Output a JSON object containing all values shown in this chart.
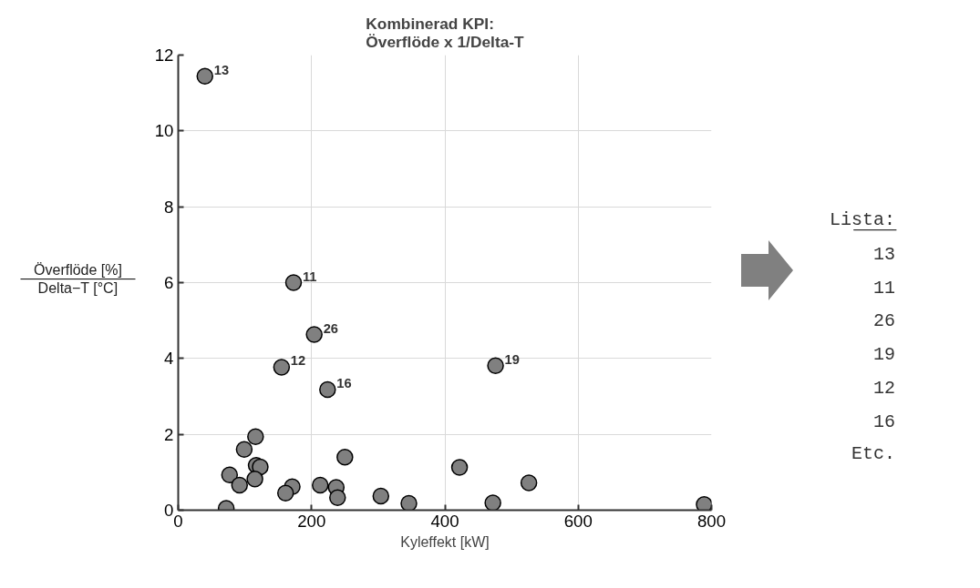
{
  "chart_data": {
    "type": "scatter",
    "title": "Kombinerad KPI:\nÖverflöde x 1/Delta-T",
    "xlabel": "Kyleffekt [kW]",
    "ylabel": "Överflöde [%]\nDelta−T [°C]",
    "x": [
      40,
      173,
      204,
      155,
      224,
      476,
      116,
      99,
      117,
      123,
      77,
      92,
      115,
      72,
      171,
      161,
      213,
      237,
      239,
      250,
      304,
      346,
      422,
      472,
      526,
      789
    ],
    "values": [
      11.44,
      6.0,
      4.63,
      3.77,
      3.18,
      3.81,
      1.94,
      1.6,
      1.18,
      1.14,
      0.93,
      0.66,
      0.82,
      0.05,
      0.62,
      0.45,
      0.66,
      0.6,
      0.33,
      1.4,
      0.37,
      0.18,
      1.13,
      0.19,
      0.72,
      0.15
    ],
    "color": "#808080",
    "marker": "circle",
    "xlim": [
      0,
      800
    ],
    "ylim": [
      0,
      12
    ],
    "xticks": [
      0,
      200,
      400,
      600,
      800
    ],
    "yticks": [
      0,
      2,
      4,
      6,
      8,
      10,
      12
    ],
    "grid": true,
    "annotations": [
      {
        "text": "13",
        "x": 40,
        "y": 11.44
      },
      {
        "text": "11",
        "x": 173,
        "y": 6.0
      },
      {
        "text": "26",
        "x": 204,
        "y": 4.63
      },
      {
        "text": "12",
        "x": 155,
        "y": 3.77
      },
      {
        "text": "16",
        "x": 224,
        "y": 3.18
      },
      {
        "text": "19",
        "x": 476,
        "y": 3.81
      },
      "Lista:",
      "13",
      "11",
      "26",
      "19",
      "12",
      "16",
      "Etc."
    ]
  }
}
